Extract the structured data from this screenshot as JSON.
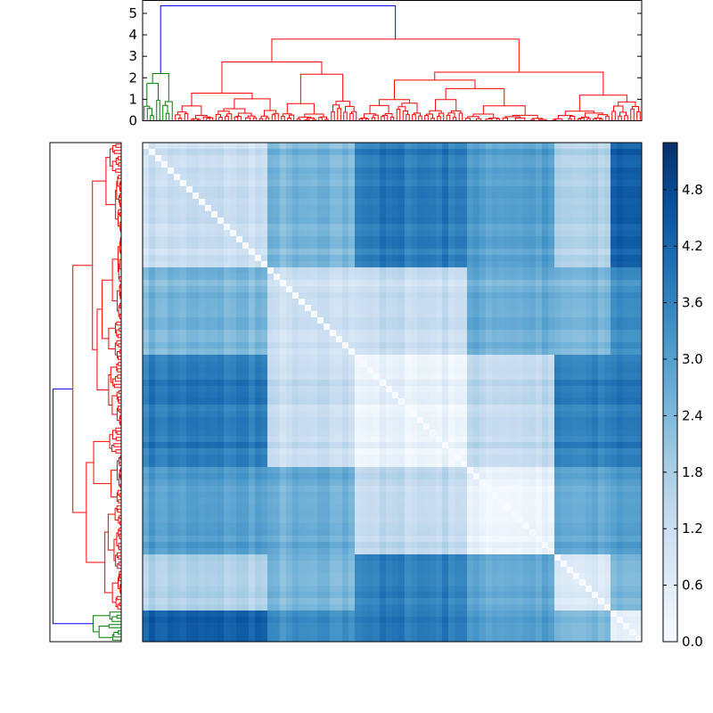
{
  "chart_data": {
    "type": "heatmap",
    "title": "",
    "colormap": "Blues",
    "colorbar": {
      "min": 0.0,
      "max": 5.3,
      "ticks": [
        "0.0",
        "0.6",
        "1.2",
        "1.8",
        "2.4",
        "3.0",
        "3.6",
        "4.2",
        "4.8"
      ],
      "tick_values": [
        0.0,
        0.6,
        1.2,
        1.8,
        2.4,
        3.0,
        3.6,
        4.2,
        4.8
      ]
    },
    "top_dendrogram": {
      "y_ticks": [
        "0",
        "1",
        "2",
        "3",
        "4",
        "5"
      ],
      "y_tick_values": [
        0,
        1,
        2,
        3,
        4,
        5
      ],
      "ylim": [
        0,
        5.6
      ],
      "root_height": 5.35,
      "red_cluster_height": 3.8,
      "green_cluster_height": 2.2,
      "link_colors": [
        "#0000ff",
        "#ff0000",
        "#008000"
      ]
    },
    "left_dendrogram": {
      "root_height": 5.35,
      "link_colors": [
        "#0000ff",
        "#ff0000",
        "#008000"
      ]
    },
    "blocks": [
      0.25,
      0.42,
      0.65,
      0.82,
      0.94,
      1.0
    ],
    "block_distance_matrix": [
      [
        1.2,
        2.4,
        3.8,
        3.0,
        1.6,
        4.4
      ],
      [
        2.4,
        1.0,
        1.2,
        2.6,
        2.3,
        3.4
      ],
      [
        3.8,
        1.2,
        0.4,
        1.4,
        3.6,
        3.9
      ],
      [
        3.0,
        2.6,
        1.4,
        0.3,
        2.7,
        3.1
      ],
      [
        1.6,
        2.3,
        3.6,
        2.7,
        0.6,
        2.4
      ],
      [
        4.4,
        3.4,
        3.9,
        3.1,
        2.4,
        0.6
      ]
    ]
  }
}
